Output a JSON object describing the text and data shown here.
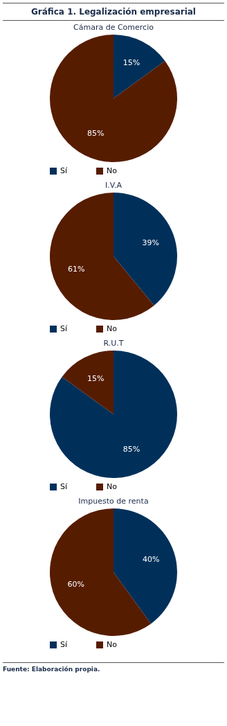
{
  "chart_data": [
    {
      "type": "pie",
      "title": "Gráfica 1. Legalización empresarial",
      "subtitle": "Cámara de Comercio",
      "categories": [
        "Sí",
        "No"
      ],
      "values": [
        15,
        85
      ],
      "colors": [
        "#00305a",
        "#561c00"
      ],
      "value_labels": [
        "15%",
        "85%"
      ],
      "legend": "bottom"
    },
    {
      "type": "pie",
      "subtitle": "I.V.A",
      "categories": [
        "Sí",
        "No"
      ],
      "values": [
        39,
        61
      ],
      "colors": [
        "#00305a",
        "#561c00"
      ],
      "value_labels": [
        "39%",
        "61%"
      ],
      "legend": "bottom"
    },
    {
      "type": "pie",
      "subtitle": "R.U.T",
      "categories": [
        "Sí",
        "No"
      ],
      "values": [
        85,
        15
      ],
      "colors": [
        "#00305a",
        "#561c00"
      ],
      "value_labels": [
        "85%",
        "15%"
      ],
      "legend": "bottom"
    },
    {
      "type": "pie",
      "subtitle": "Impuesto de renta",
      "categories": [
        "Sí",
        "No"
      ],
      "values": [
        40,
        60
      ],
      "colors": [
        "#00305a",
        "#561c00"
      ],
      "value_labels": [
        "40%",
        "60%"
      ],
      "legend": "bottom",
      "annotations": [
        "Fuente: Elaboración propia."
      ]
    }
  ]
}
